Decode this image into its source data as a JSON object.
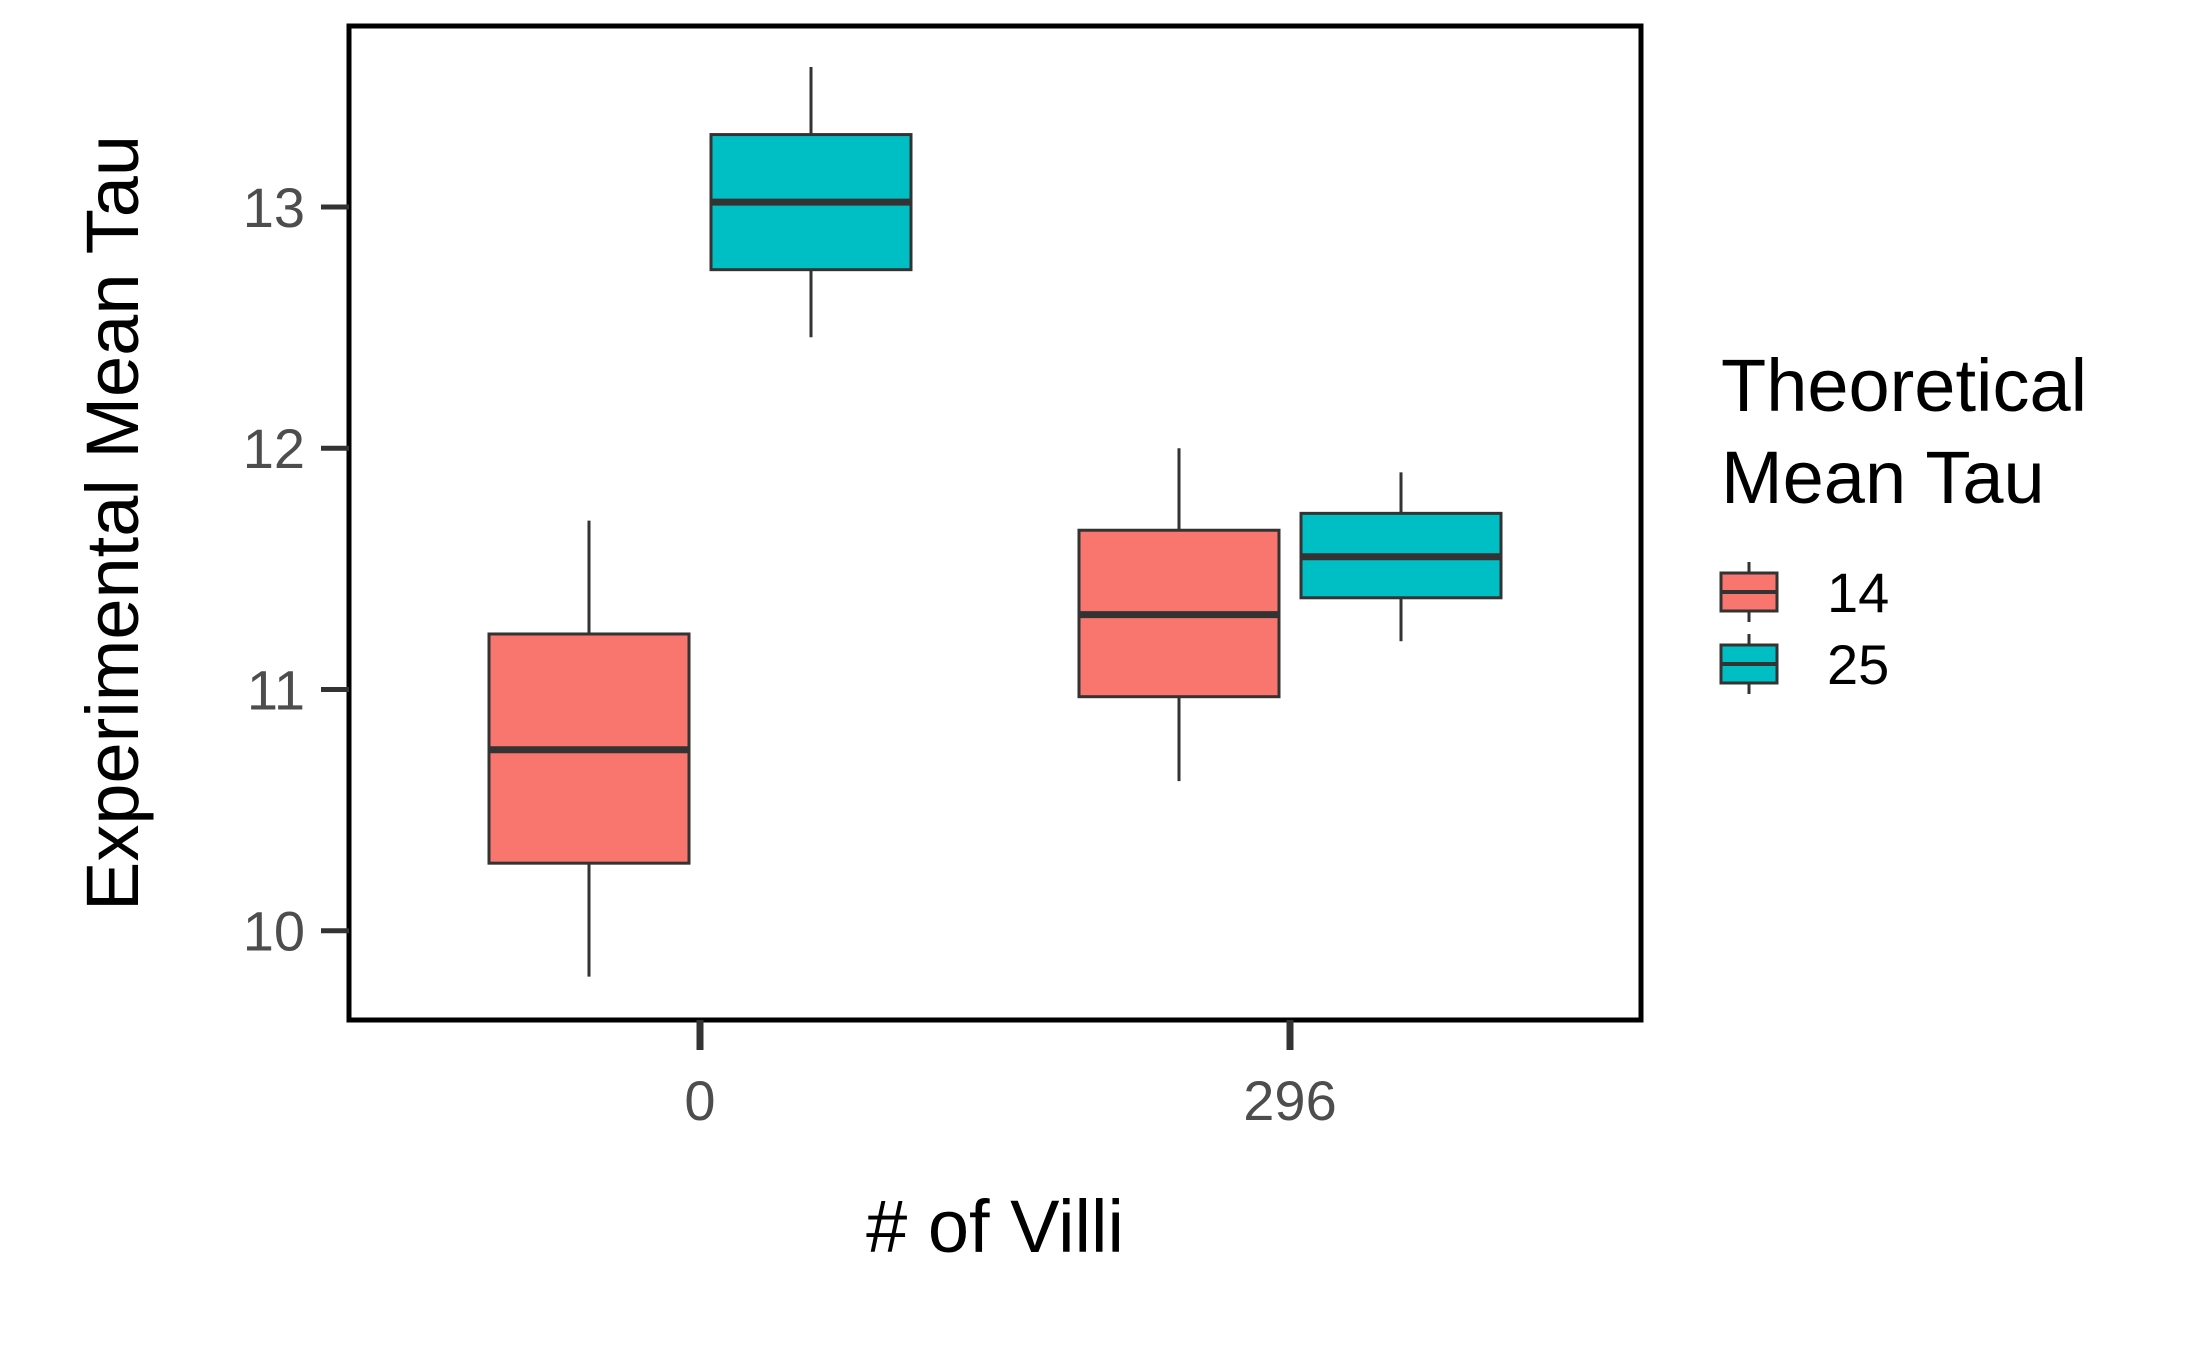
{
  "chart_data": {
    "type": "boxplot",
    "xlabel": "# of Villi",
    "ylabel": "Experimental Mean Tau",
    "categories": [
      "0",
      "296"
    ],
    "y_ticks": [
      "10",
      "11",
      "12",
      "13"
    ],
    "ylim": [
      9.63,
      13.75
    ],
    "grid": false,
    "legend": {
      "title_lines": [
        "Theoretical",
        "Mean Tau"
      ],
      "position": "right"
    },
    "series": [
      {
        "name": "14",
        "color": "#F8766D",
        "boxes": [
          {
            "category": "0",
            "whisker_low": 9.81,
            "q1": 10.28,
            "median": 10.75,
            "q3": 11.23,
            "whisker_high": 11.7
          },
          {
            "category": "296",
            "whisker_low": 10.62,
            "q1": 10.97,
            "median": 11.31,
            "q3": 11.66,
            "whisker_high": 12.0
          }
        ]
      },
      {
        "name": "25",
        "color": "#00BFC4",
        "boxes": [
          {
            "category": "0",
            "whisker_low": 12.46,
            "q1": 12.74,
            "median": 13.02,
            "q3": 13.3,
            "whisker_high": 13.58
          },
          {
            "category": "296",
            "whisker_low": 11.2,
            "q1": 11.38,
            "median": 11.55,
            "q3": 11.73,
            "whisker_high": 11.9
          }
        ]
      }
    ]
  }
}
